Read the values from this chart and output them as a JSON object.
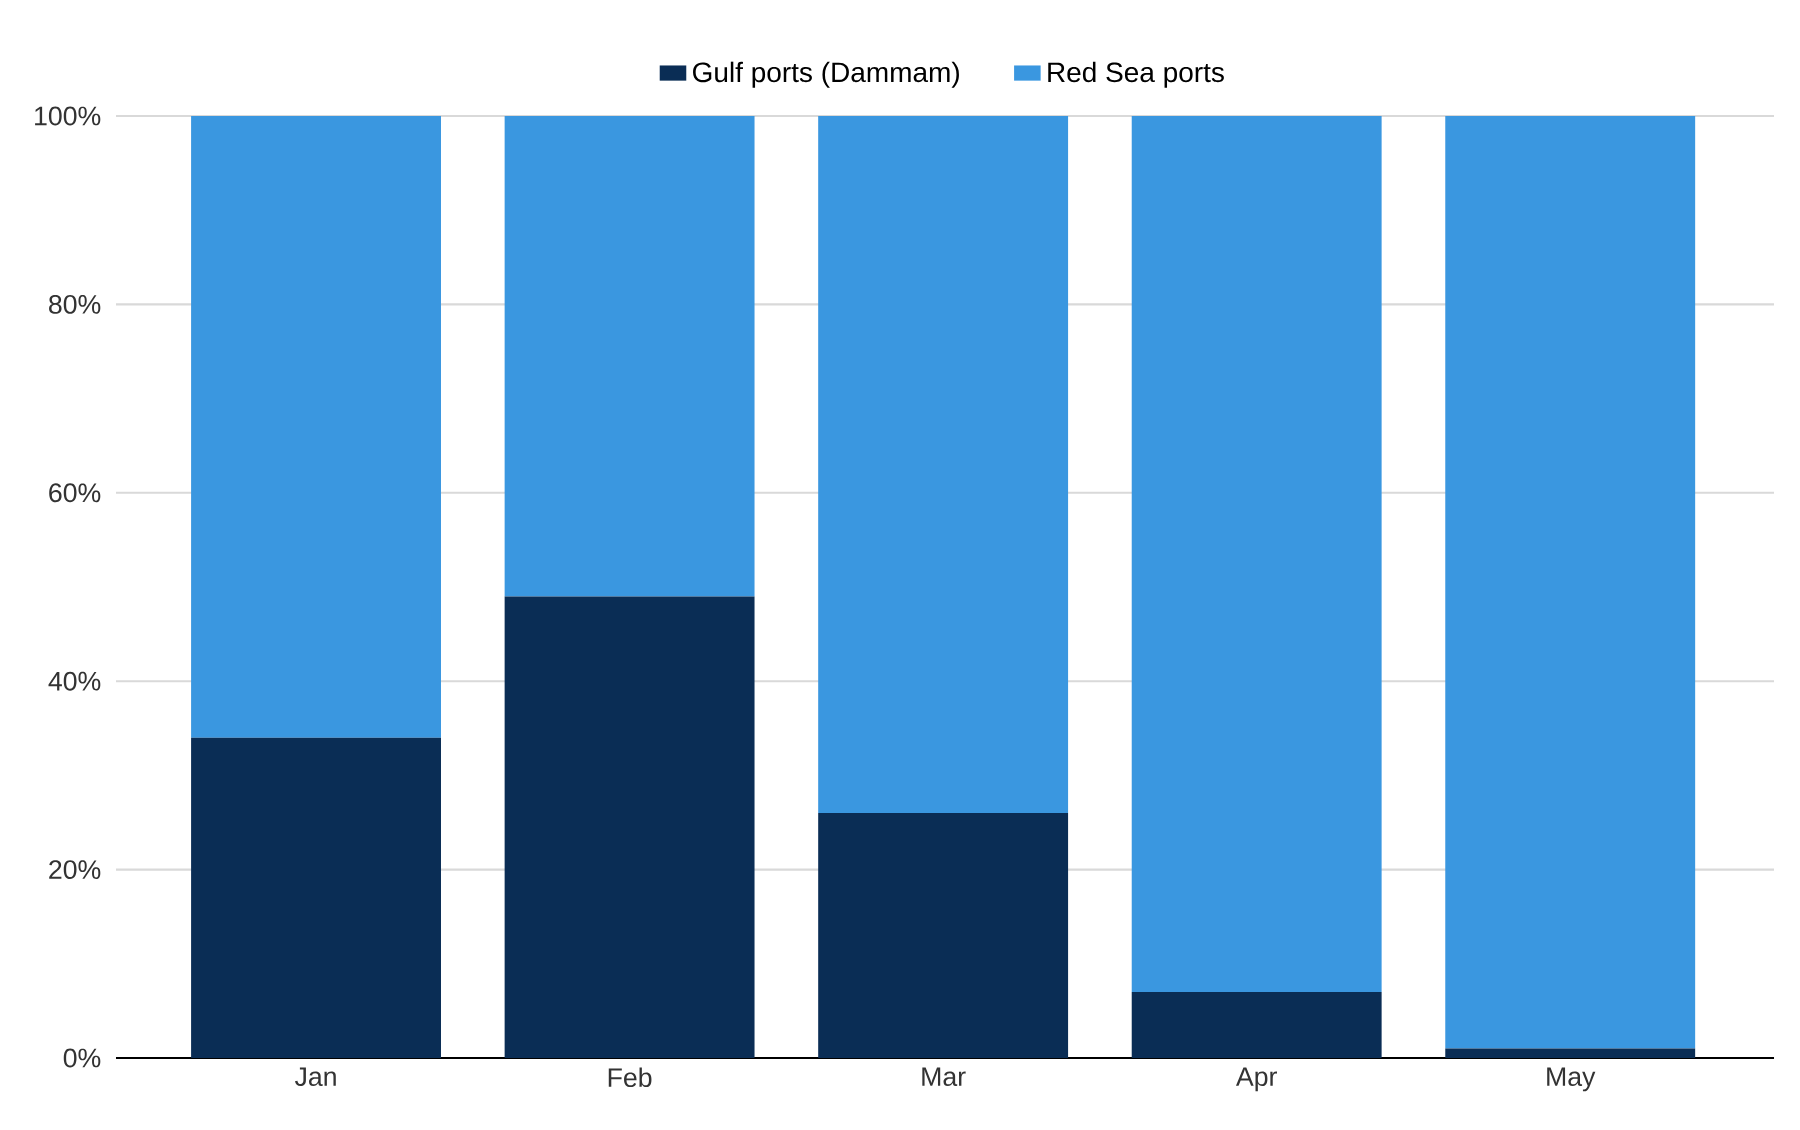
{
  "chart_data": {
    "type": "bar",
    "stacked": true,
    "categories": [
      "Jan",
      "Feb",
      "Mar",
      "Apr",
      "May"
    ],
    "series": [
      {
        "name": "Gulf ports (Dammam)",
        "color": "#0a2d55",
        "values": [
          34,
          49,
          26,
          7,
          1
        ]
      },
      {
        "name": "Red Sea ports",
        "color": "#3a97e0",
        "values": [
          66,
          51,
          74,
          93,
          99
        ]
      }
    ],
    "ylim": [
      0,
      100
    ],
    "yticks": [
      {
        "value": 0,
        "label": "0%"
      },
      {
        "value": 20,
        "label": "20%"
      },
      {
        "value": 40,
        "label": "40%"
      },
      {
        "value": 60,
        "label": "60%"
      },
      {
        "value": 80,
        "label": "80%"
      },
      {
        "value": 100,
        "label": "100%"
      }
    ],
    "grid": "y",
    "legend": "top"
  }
}
